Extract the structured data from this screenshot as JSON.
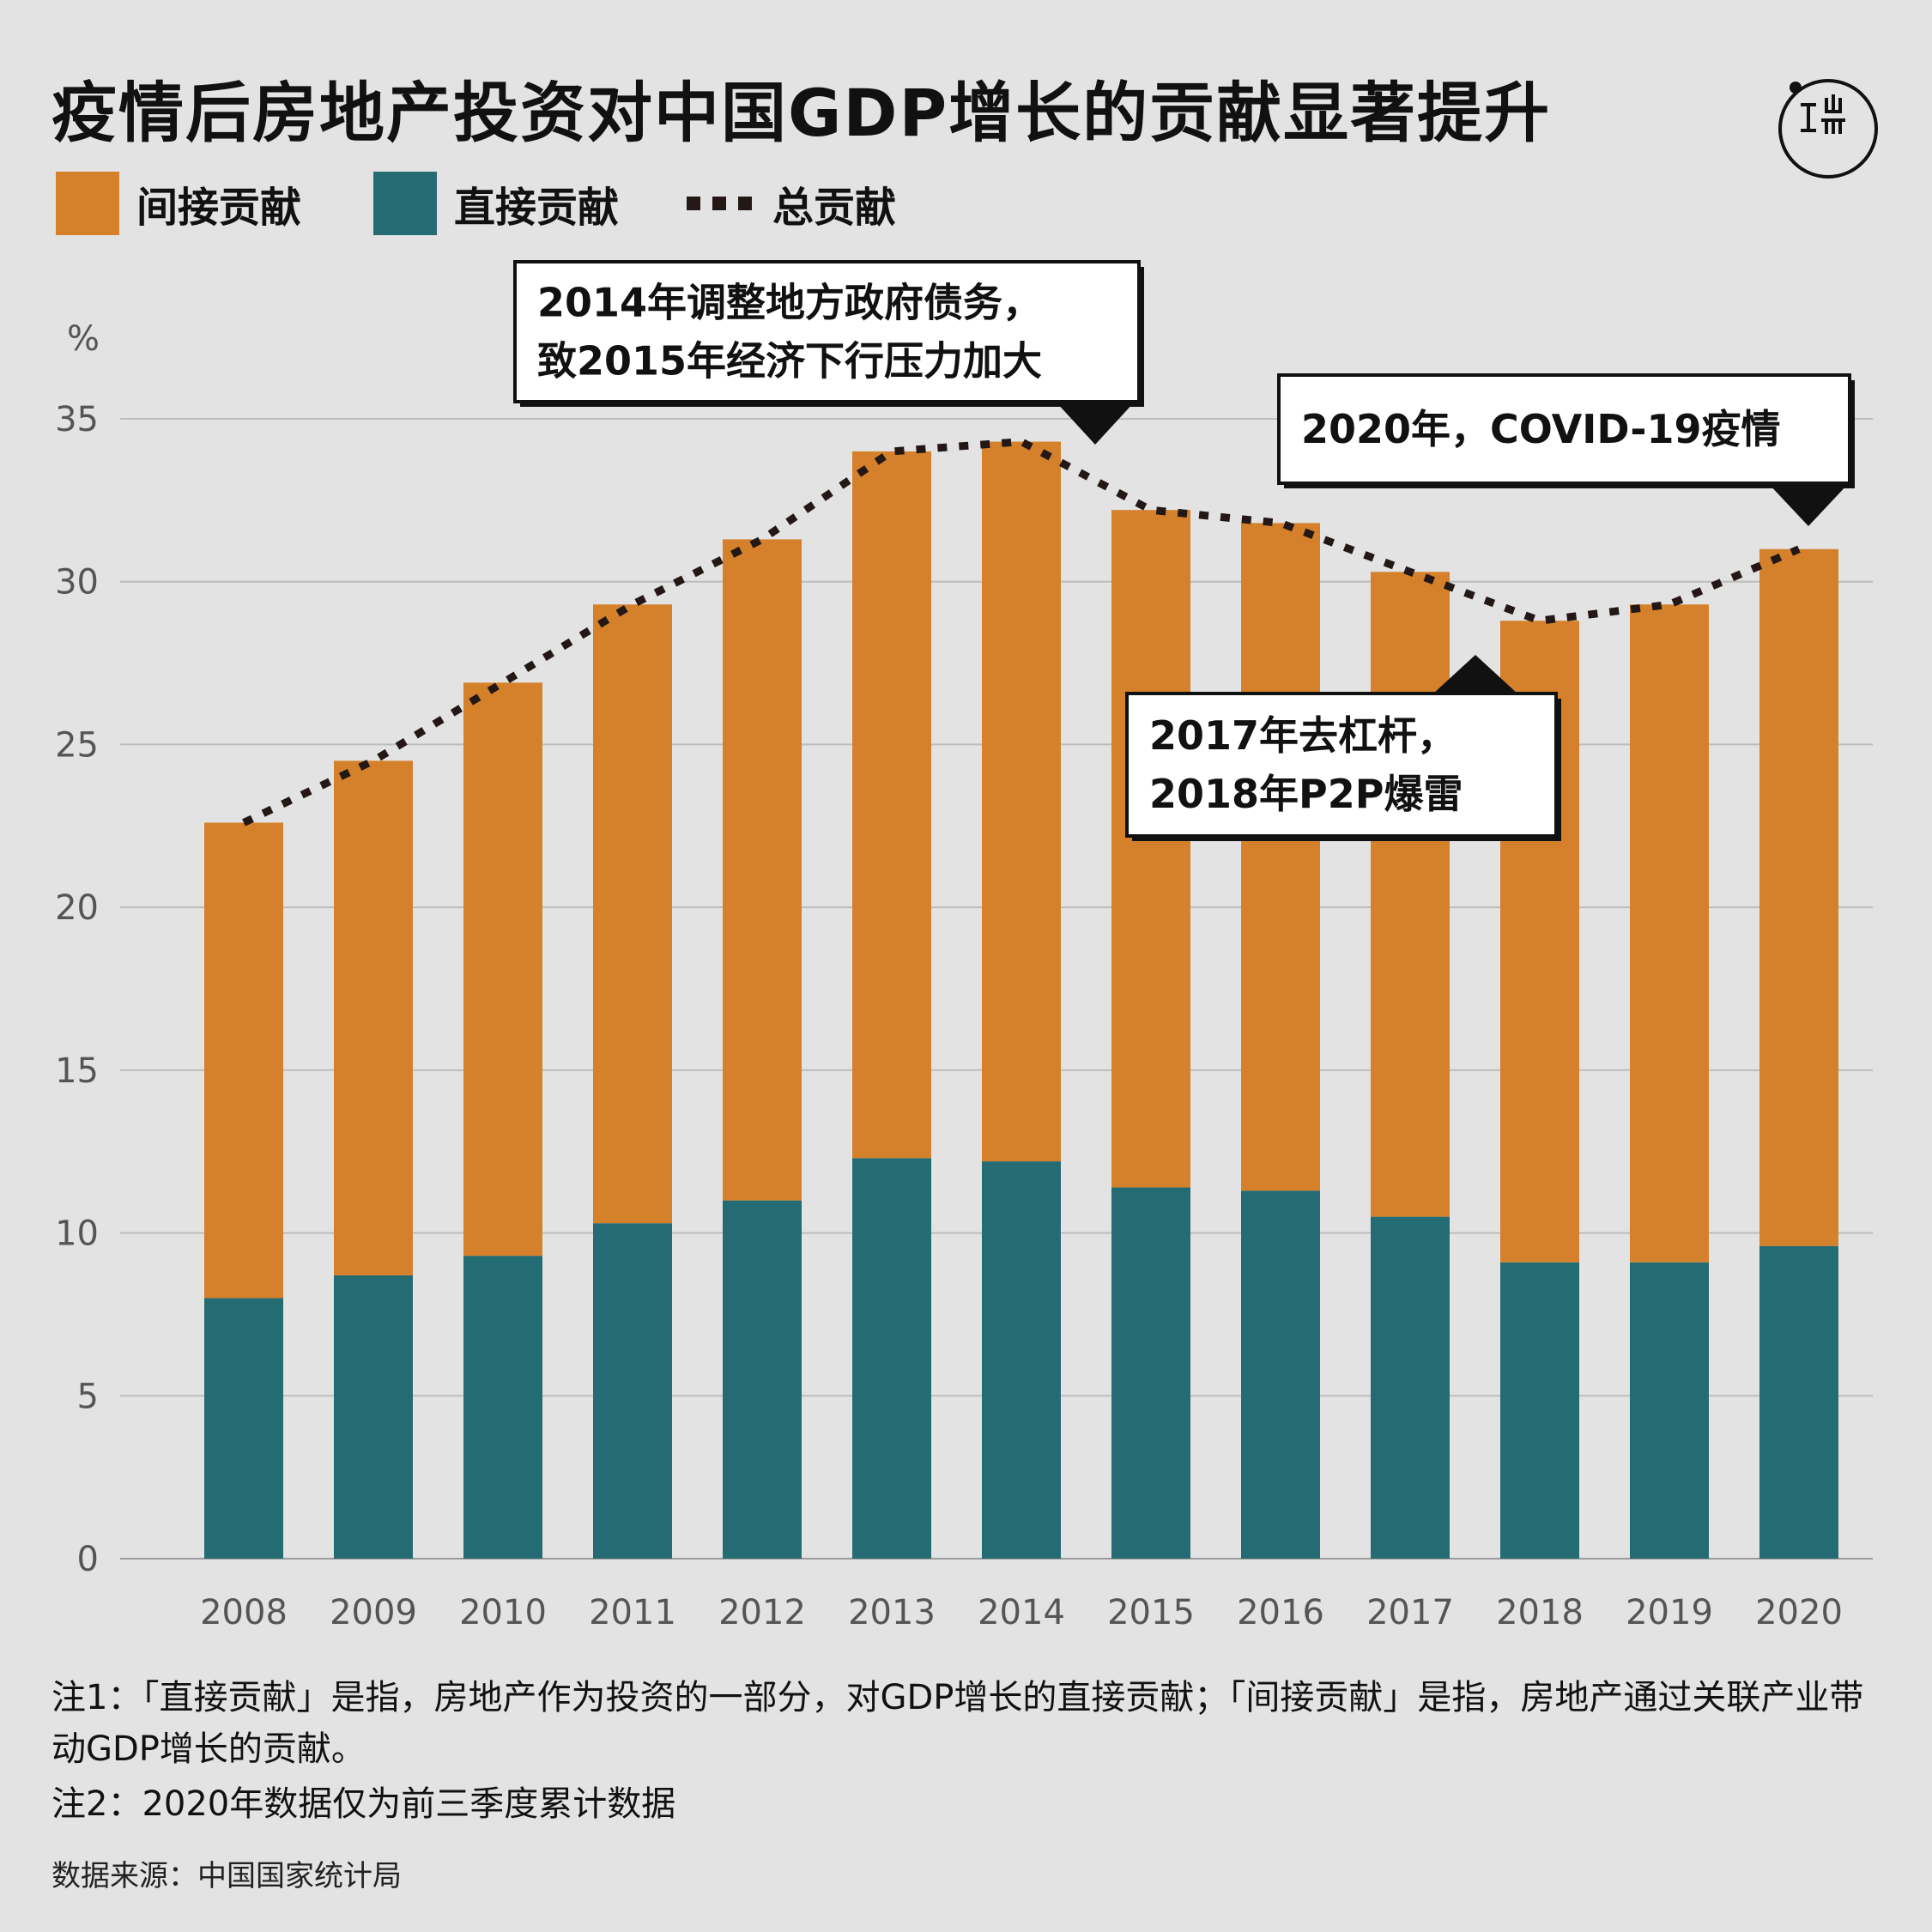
{
  "title": "疫情后房地产投资对中国GDP增长的贡献显著提升",
  "legend": {
    "indirect": "间接贡献",
    "direct": "直接贡献",
    "total": "总贡献"
  },
  "colors": {
    "indirect": "#d5812b",
    "direct": "#256b73",
    "total": "#231815",
    "grid": "#bdbdbd",
    "axis_text": "#555555"
  },
  "logo_icon": "initium-logo-icon",
  "annotations": [
    {
      "lines": [
        "2014年调整地方政府债务，",
        "致2015年经济下行压力加大"
      ]
    },
    {
      "lines": [
        "2020年，COVID-19疫情"
      ]
    },
    {
      "lines": [
        "2017年去杠杆，",
        "2018年P2P爆雷"
      ]
    }
  ],
  "chart_data": {
    "type": "bar",
    "stacked": true,
    "categories": [
      "2008",
      "2009",
      "2010",
      "2011",
      "2012",
      "2013",
      "2014",
      "2015",
      "2016",
      "2017",
      "2018",
      "2019",
      "2020"
    ],
    "series": [
      {
        "name": "直接贡献",
        "values": [
          8.0,
          8.7,
          9.3,
          10.3,
          11.0,
          12.3,
          12.2,
          11.4,
          11.3,
          10.5,
          9.1,
          9.1,
          9.6
        ]
      },
      {
        "name": "间接贡献",
        "values": [
          14.6,
          15.8,
          17.6,
          19.0,
          20.3,
          21.7,
          22.1,
          20.8,
          20.5,
          19.8,
          19.7,
          20.2,
          21.4
        ]
      }
    ],
    "line_series": {
      "name": "总贡献",
      "values": [
        22.6,
        24.5,
        26.9,
        29.3,
        31.3,
        34.0,
        34.3,
        32.2,
        31.8,
        30.3,
        28.8,
        29.3,
        31.0
      ]
    },
    "ylabel": "%",
    "ylim": [
      0,
      35
    ],
    "yticks": [
      "0",
      "5",
      "10",
      "15",
      "20",
      "25",
      "30",
      "35"
    ],
    "grid": true,
    "legend_position": "top-left"
  },
  "notes": {
    "note1": "注1：「直接贡献」是指，房地产作为投资的一部分，对GDP增长的直接贡献；「间接贡献」是指，房地产通过关联产业带动GDP增长的贡献。",
    "note2": "注2：2020年数据仅为前三季度累计数据"
  },
  "source": "数据来源：中国国家统计局"
}
